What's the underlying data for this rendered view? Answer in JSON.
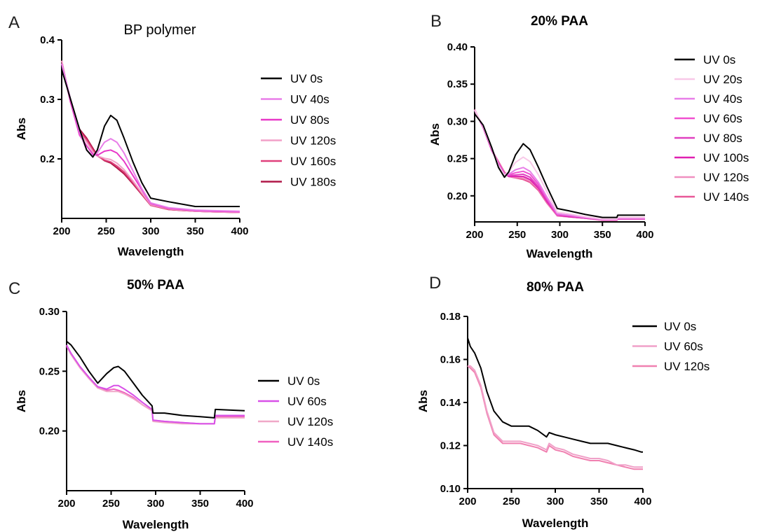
{
  "chart_data": [
    {
      "panel": "A",
      "type": "line",
      "title": "BP polymer",
      "xlabel": "Wavelength",
      "ylabel": "Abs",
      "xlim": [
        200,
        400
      ],
      "ylim": [
        0.1,
        0.4
      ],
      "xticks": [
        200,
        250,
        300,
        350,
        400
      ],
      "yticks": [
        0.2,
        0.3,
        0.4
      ],
      "xtick_labels": [
        "200",
        "250",
        "300",
        "350",
        "400"
      ],
      "ytick_labels": [
        "0.2",
        "0.3",
        "0.4"
      ],
      "legend": "right",
      "grid": false,
      "series": [
        {
          "name": "UV 0s",
          "color": "#000000",
          "x": [
            200,
            210,
            220,
            228,
            235,
            240,
            248,
            255,
            262,
            270,
            280,
            290,
            300,
            320,
            350,
            370,
            400
          ],
          "y": [
            0.35,
            0.3,
            0.25,
            0.215,
            0.203,
            0.215,
            0.255,
            0.273,
            0.265,
            0.235,
            0.195,
            0.16,
            0.134,
            0.128,
            0.12,
            0.12,
            0.12
          ]
        },
        {
          "name": "UV 40s",
          "color": "#e87ee8",
          "x": [
            200,
            210,
            220,
            228,
            235,
            240,
            248,
            255,
            262,
            270,
            280,
            290,
            300,
            320,
            350,
            370,
            400
          ],
          "y": [
            0.36,
            0.3,
            0.245,
            0.215,
            0.205,
            0.21,
            0.228,
            0.234,
            0.228,
            0.21,
            0.18,
            0.15,
            0.126,
            0.118,
            0.114,
            0.113,
            0.112
          ]
        },
        {
          "name": "UV 80s",
          "color": "#e838c8",
          "x": [
            200,
            210,
            220,
            228,
            235,
            240,
            248,
            255,
            262,
            270,
            280,
            290,
            300,
            320,
            350,
            370,
            400
          ],
          "y": [
            0.36,
            0.295,
            0.24,
            0.222,
            0.208,
            0.206,
            0.213,
            0.215,
            0.21,
            0.196,
            0.172,
            0.148,
            0.125,
            0.117,
            0.113,
            0.112,
            0.111
          ]
        },
        {
          "name": "UV 120s",
          "color": "#f2a0c8",
          "x": [
            200,
            210,
            220,
            228,
            235,
            240,
            248,
            255,
            262,
            270,
            280,
            290,
            300,
            320,
            350,
            370,
            400
          ],
          "y": [
            0.365,
            0.295,
            0.243,
            0.228,
            0.212,
            0.205,
            0.201,
            0.199,
            0.193,
            0.182,
            0.163,
            0.143,
            0.123,
            0.116,
            0.112,
            0.111,
            0.11
          ]
        },
        {
          "name": "UV 160s",
          "color": "#e0407c",
          "x": [
            200,
            210,
            220,
            228,
            235,
            240,
            248,
            255,
            262,
            270,
            280,
            290,
            300,
            320,
            350,
            370,
            400
          ],
          "y": [
            0.365,
            0.295,
            0.247,
            0.232,
            0.215,
            0.205,
            0.198,
            0.195,
            0.188,
            0.178,
            0.16,
            0.141,
            0.122,
            0.115,
            0.112,
            0.111,
            0.11
          ]
        },
        {
          "name": "UV 180s",
          "color": "#b01848",
          "x": [
            200,
            210,
            220,
            228,
            235,
            240,
            248,
            255,
            262,
            270,
            280,
            290,
            300,
            320,
            350,
            370,
            400
          ],
          "y": [
            0.365,
            0.295,
            0.25,
            0.235,
            0.218,
            0.206,
            0.197,
            0.193,
            0.185,
            0.175,
            0.158,
            0.14,
            0.122,
            0.115,
            0.112,
            0.111,
            0.11
          ]
        }
      ]
    },
    {
      "panel": "B",
      "type": "line",
      "title": "20% PAA",
      "xlabel": "Wavelength",
      "ylabel": "Abs",
      "xlim": [
        200,
        400
      ],
      "ylim": [
        0.165,
        0.4
      ],
      "xticks": [
        200,
        250,
        300,
        350,
        400
      ],
      "yticks": [
        0.2,
        0.25,
        0.3,
        0.35,
        0.4
      ],
      "xtick_labels": [
        "200",
        "250",
        "300",
        "350",
        "400"
      ],
      "ytick_labels": [
        "0.20",
        "0.25",
        "0.30",
        "0.35",
        "0.40"
      ],
      "legend": "right",
      "grid": false,
      "series": [
        {
          "name": "UV 0s",
          "color": "#000000",
          "x": [
            200,
            210,
            220,
            228,
            235,
            240,
            248,
            257,
            265,
            275,
            285,
            297,
            310,
            330,
            350,
            367,
            368,
            400
          ],
          "y": [
            0.31,
            0.295,
            0.265,
            0.238,
            0.225,
            0.232,
            0.255,
            0.27,
            0.262,
            0.238,
            0.212,
            0.183,
            0.18,
            0.175,
            0.171,
            0.171,
            0.174,
            0.174
          ]
        },
        {
          "name": "UV 20s",
          "color": "#f8c8e8",
          "x": [
            200,
            210,
            220,
            228,
            235,
            240,
            248,
            257,
            265,
            275,
            285,
            297,
            310,
            330,
            350,
            367,
            368,
            400
          ],
          "y": [
            0.315,
            0.294,
            0.264,
            0.24,
            0.228,
            0.232,
            0.245,
            0.252,
            0.246,
            0.228,
            0.205,
            0.178,
            0.176,
            0.172,
            0.169,
            0.169,
            0.171,
            0.171
          ]
        },
        {
          "name": "UV 40s",
          "color": "#e87ee8",
          "x": [
            200,
            210,
            220,
            228,
            235,
            240,
            248,
            257,
            265,
            275,
            285,
            297,
            310,
            330,
            350,
            367,
            368,
            400
          ],
          "y": [
            0.315,
            0.293,
            0.264,
            0.242,
            0.228,
            0.229,
            0.235,
            0.238,
            0.233,
            0.218,
            0.198,
            0.176,
            0.174,
            0.171,
            0.168,
            0.168,
            0.17,
            0.17
          ]
        },
        {
          "name": "UV 60s",
          "color": "#f050d0",
          "x": [
            200,
            210,
            220,
            228,
            235,
            240,
            248,
            257,
            265,
            275,
            285,
            297,
            310,
            330,
            350,
            367,
            368,
            400
          ],
          "y": [
            0.315,
            0.293,
            0.263,
            0.242,
            0.229,
            0.228,
            0.231,
            0.233,
            0.229,
            0.215,
            0.196,
            0.175,
            0.174,
            0.171,
            0.168,
            0.168,
            0.17,
            0.17
          ]
        },
        {
          "name": "UV 80s",
          "color": "#e040c0",
          "x": [
            200,
            210,
            220,
            228,
            235,
            240,
            248,
            257,
            265,
            275,
            285,
            297,
            310,
            330,
            350,
            367,
            368,
            400
          ],
          "y": [
            0.315,
            0.292,
            0.262,
            0.243,
            0.23,
            0.227,
            0.228,
            0.229,
            0.225,
            0.212,
            0.194,
            0.174,
            0.173,
            0.17,
            0.168,
            0.168,
            0.169,
            0.169
          ]
        },
        {
          "name": "UV 100s",
          "color": "#e020b0",
          "x": [
            200,
            210,
            220,
            228,
            235,
            240,
            248,
            257,
            265,
            275,
            285,
            297,
            310,
            330,
            350,
            367,
            368,
            400
          ],
          "y": [
            0.315,
            0.292,
            0.261,
            0.244,
            0.23,
            0.226,
            0.226,
            0.226,
            0.222,
            0.21,
            0.192,
            0.174,
            0.172,
            0.17,
            0.168,
            0.168,
            0.169,
            0.169
          ]
        },
        {
          "name": "UV 120s",
          "color": "#f090c0",
          "x": [
            200,
            210,
            220,
            228,
            235,
            240,
            248,
            257,
            265,
            275,
            285,
            297,
            310,
            330,
            350,
            367,
            368,
            400
          ],
          "y": [
            0.316,
            0.292,
            0.262,
            0.245,
            0.231,
            0.226,
            0.225,
            0.224,
            0.22,
            0.209,
            0.191,
            0.173,
            0.172,
            0.17,
            0.167,
            0.167,
            0.169,
            0.169
          ]
        },
        {
          "name": "UV 140s",
          "color": "#e85898",
          "x": [
            200,
            210,
            220,
            228,
            235,
            240,
            248,
            257,
            265,
            275,
            285,
            297,
            310,
            330,
            350,
            367,
            368,
            400
          ],
          "y": [
            0.316,
            0.292,
            0.262,
            0.246,
            0.232,
            0.226,
            0.224,
            0.222,
            0.218,
            0.207,
            0.19,
            0.173,
            0.172,
            0.17,
            0.167,
            0.167,
            0.169,
            0.169
          ]
        }
      ]
    },
    {
      "panel": "C",
      "type": "line",
      "title": "50% PAA",
      "xlabel": "Wavelength",
      "ylabel": "Abs",
      "xlim": [
        200,
        400
      ],
      "ylim": [
        0.15,
        0.3
      ],
      "xticks": [
        200,
        250,
        300,
        350,
        400
      ],
      "yticks": [
        0.2,
        0.25,
        0.3
      ],
      "xtick_labels": [
        "200",
        "250",
        "300",
        "350",
        "400"
      ],
      "ytick_labels": [
        "0.20",
        "0.25",
        "0.30"
      ],
      "legend": "right",
      "grid": false,
      "series": [
        {
          "name": "UV 0s",
          "color": "#000000",
          "x": [
            200,
            205,
            215,
            225,
            235,
            245,
            253,
            258,
            265,
            275,
            285,
            296,
            297,
            310,
            330,
            350,
            366,
            367,
            400
          ],
          "y": [
            0.275,
            0.272,
            0.262,
            0.25,
            0.24,
            0.248,
            0.253,
            0.254,
            0.25,
            0.24,
            0.23,
            0.221,
            0.215,
            0.215,
            0.213,
            0.212,
            0.211,
            0.218,
            0.217
          ]
        },
        {
          "name": "UV 60s",
          "color": "#d850e8",
          "x": [
            200,
            205,
            215,
            225,
            235,
            245,
            253,
            258,
            265,
            275,
            285,
            296,
            297,
            310,
            330,
            350,
            366,
            367,
            400
          ],
          "y": [
            0.272,
            0.265,
            0.254,
            0.245,
            0.237,
            0.235,
            0.238,
            0.238,
            0.235,
            0.23,
            0.224,
            0.218,
            0.209,
            0.208,
            0.207,
            0.206,
            0.206,
            0.213,
            0.213
          ]
        },
        {
          "name": "UV 120s",
          "color": "#f0a8c8",
          "x": [
            200,
            205,
            215,
            225,
            235,
            245,
            253,
            258,
            265,
            275,
            285,
            296,
            297,
            310,
            330,
            350,
            366,
            367,
            400
          ],
          "y": [
            0.272,
            0.264,
            0.253,
            0.244,
            0.236,
            0.233,
            0.233,
            0.233,
            0.231,
            0.227,
            0.222,
            0.217,
            0.208,
            0.207,
            0.206,
            0.206,
            0.206,
            0.211,
            0.211
          ]
        },
        {
          "name": "UV 140s",
          "color": "#f060c0",
          "x": [
            200,
            205,
            215,
            225,
            235,
            245,
            253,
            258,
            265,
            275,
            285,
            296,
            297,
            310,
            330,
            350,
            366,
            367,
            400
          ],
          "y": [
            0.271,
            0.264,
            0.253,
            0.244,
            0.236,
            0.234,
            0.235,
            0.234,
            0.232,
            0.228,
            0.222,
            0.217,
            0.209,
            0.208,
            0.207,
            0.206,
            0.206,
            0.212,
            0.212
          ]
        }
      ]
    },
    {
      "panel": "D",
      "type": "line",
      "title": "80% PAA",
      "xlabel": "Wavelength",
      "ylabel": "Abs",
      "xlim": [
        200,
        400
      ],
      "ylim": [
        0.1,
        0.18
      ],
      "xticks": [
        200,
        250,
        300,
        350,
        400
      ],
      "yticks": [
        0.1,
        0.12,
        0.14,
        0.16,
        0.18
      ],
      "xtick_labels": [
        "200",
        "250",
        "300",
        "350",
        "400"
      ],
      "ytick_labels": [
        "0.10",
        "0.12",
        "0.14",
        "0.16",
        "0.18"
      ],
      "legend": "top-right",
      "grid": false,
      "series": [
        {
          "name": "UV 0s",
          "color": "#000000",
          "x": [
            200,
            203,
            208,
            215,
            222,
            230,
            240,
            250,
            260,
            270,
            280,
            290,
            293,
            300,
            310,
            320,
            330,
            340,
            350,
            360,
            370,
            380,
            390,
            398,
            400
          ],
          "y": [
            0.17,
            0.166,
            0.163,
            0.156,
            0.145,
            0.136,
            0.131,
            0.129,
            0.129,
            0.129,
            0.127,
            0.124,
            0.126,
            0.125,
            0.124,
            0.123,
            0.122,
            0.121,
            0.121,
            0.121,
            0.12,
            0.119,
            0.118,
            0.117,
            0.117
          ]
        },
        {
          "name": "UV 60s",
          "color": "#f0a0c8",
          "x": [
            200,
            203,
            208,
            215,
            222,
            230,
            240,
            250,
            260,
            270,
            280,
            290,
            293,
            300,
            310,
            320,
            330,
            340,
            350,
            360,
            370,
            380,
            390,
            398,
            400
          ],
          "y": [
            0.157,
            0.157,
            0.155,
            0.148,
            0.136,
            0.126,
            0.122,
            0.122,
            0.122,
            0.121,
            0.12,
            0.118,
            0.121,
            0.119,
            0.118,
            0.116,
            0.115,
            0.114,
            0.114,
            0.113,
            0.111,
            0.111,
            0.11,
            0.11,
            0.11
          ]
        },
        {
          "name": "UV 120s",
          "color": "#f080b0",
          "x": [
            200,
            203,
            208,
            215,
            222,
            230,
            240,
            250,
            260,
            270,
            280,
            290,
            293,
            300,
            310,
            320,
            330,
            340,
            350,
            360,
            370,
            380,
            390,
            398,
            400
          ],
          "y": [
            0.157,
            0.156,
            0.154,
            0.147,
            0.135,
            0.125,
            0.121,
            0.121,
            0.121,
            0.12,
            0.119,
            0.117,
            0.12,
            0.118,
            0.117,
            0.115,
            0.114,
            0.113,
            0.113,
            0.112,
            0.111,
            0.11,
            0.109,
            0.109,
            0.109
          ]
        }
      ]
    }
  ]
}
